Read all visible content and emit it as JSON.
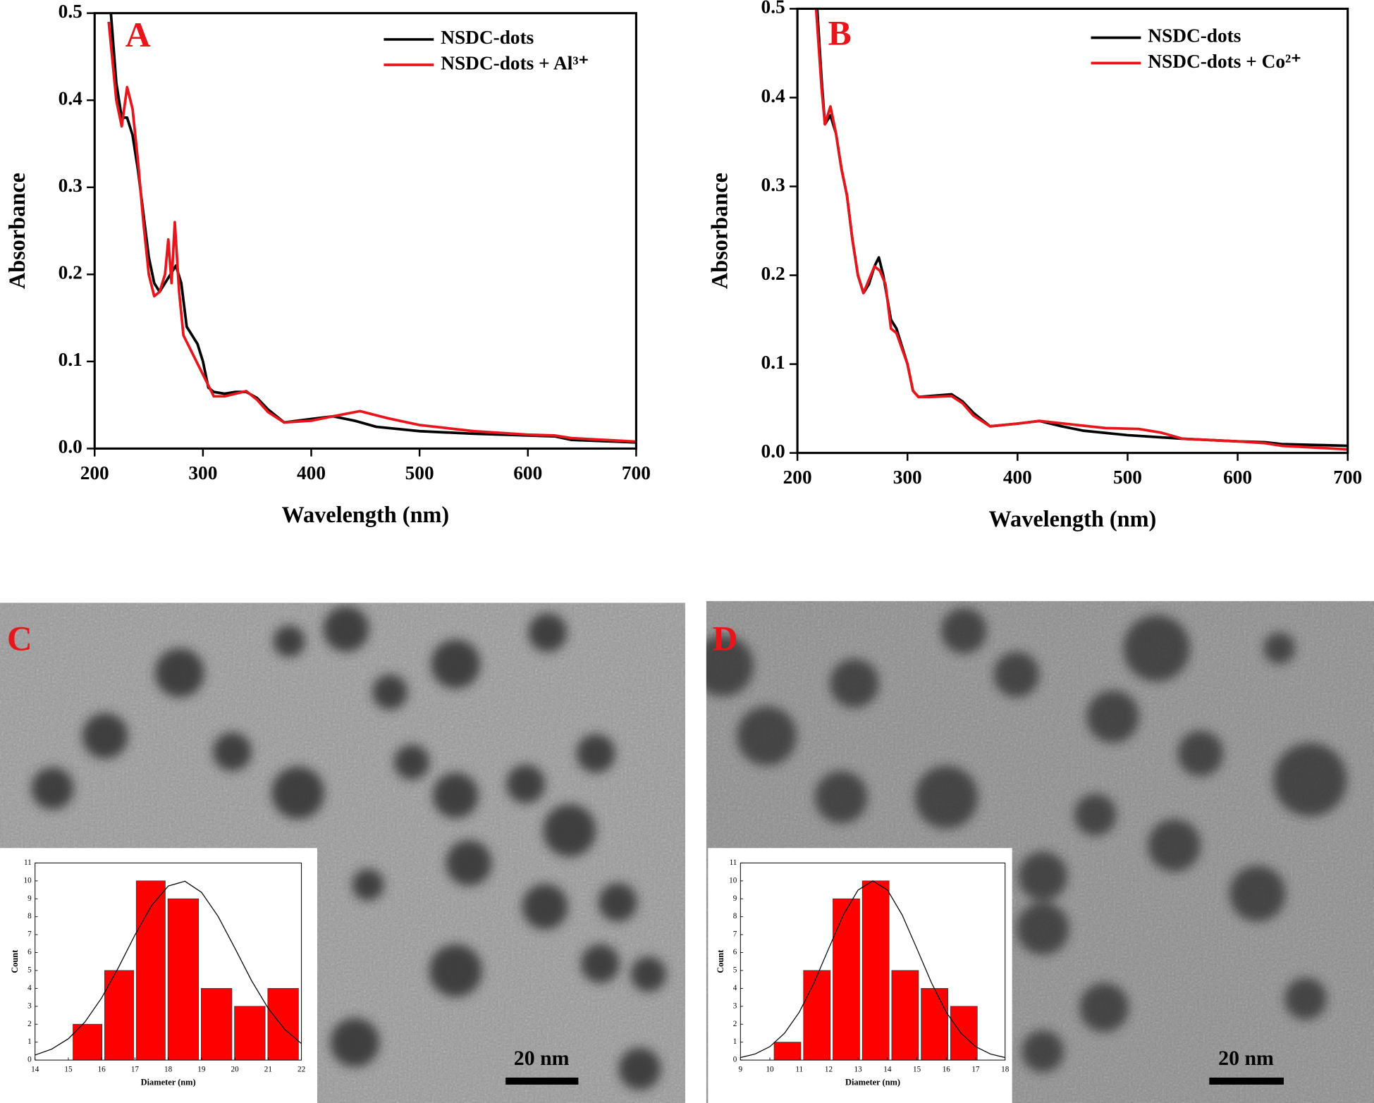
{
  "chart_data": [
    {
      "type": "line",
      "panel_label": "A",
      "xlabel": "Wavelength (nm)",
      "ylabel": "Absorbance",
      "xlim": [
        200,
        700
      ],
      "xticks": [
        200,
        300,
        400,
        500,
        600,
        700
      ],
      "ylim": [
        0,
        0.5
      ],
      "yticks": [
        {
          "value": 0,
          "label": "0.0"
        },
        0.1,
        0.2,
        0.3,
        0.4,
        0.5
      ],
      "legend": "upper right",
      "series": [
        {
          "name": "NSDC-dots",
          "color": "#000000",
          "x": [
            215,
            220,
            225,
            230,
            235,
            240,
            245,
            250,
            255,
            260,
            265,
            270,
            275,
            280,
            285,
            290,
            295,
            300,
            305,
            310,
            320,
            330,
            340,
            350,
            360,
            375,
            400,
            420,
            440,
            460,
            500,
            550,
            600,
            625,
            640,
            700
          ],
          "values": [
            0.5,
            0.42,
            0.38,
            0.38,
            0.36,
            0.32,
            0.27,
            0.22,
            0.19,
            0.18,
            0.19,
            0.2,
            0.21,
            0.19,
            0.14,
            0.13,
            0.12,
            0.1,
            0.07,
            0.065,
            0.063,
            0.065,
            0.065,
            0.058,
            0.045,
            0.03,
            0.034,
            0.037,
            0.032,
            0.025,
            0.02,
            0.017,
            0.015,
            0.014,
            0.01,
            0.007
          ]
        },
        {
          "name": "NSDC-dots + Al³⁺",
          "color": "#e8151b",
          "x": [
            213,
            220,
            225,
            230,
            235,
            240,
            245,
            250,
            255,
            260,
            265,
            268,
            271,
            274,
            278,
            282,
            290,
            300,
            310,
            320,
            340,
            350,
            360,
            375,
            400,
            420,
            445,
            470,
            500,
            550,
            600,
            625,
            640,
            700
          ],
          "values": [
            0.49,
            0.4,
            0.37,
            0.415,
            0.39,
            0.33,
            0.26,
            0.2,
            0.175,
            0.18,
            0.2,
            0.24,
            0.19,
            0.26,
            0.18,
            0.13,
            0.11,
            0.085,
            0.06,
            0.06,
            0.066,
            0.056,
            0.042,
            0.03,
            0.032,
            0.037,
            0.043,
            0.035,
            0.027,
            0.02,
            0.016,
            0.015,
            0.012,
            0.008
          ]
        }
      ]
    },
    {
      "type": "line",
      "panel_label": "B",
      "xlabel": "Wavelength (nm)",
      "ylabel": "Absorbance",
      "xlim": [
        200,
        700
      ],
      "xticks": [
        200,
        300,
        400,
        500,
        600,
        700
      ],
      "ylim": [
        0,
        0.5
      ],
      "yticks": [
        {
          "value": 0,
          "label": "0.0"
        },
        0.1,
        0.2,
        0.3,
        0.4,
        0.5
      ],
      "legend": "upper right",
      "series": [
        {
          "name": "NSDC-dots",
          "color": "#000000",
          "x": [
            218,
            222,
            225,
            230,
            235,
            240,
            245,
            250,
            255,
            260,
            265,
            270,
            274,
            278,
            285,
            290,
            300,
            305,
            310,
            320,
            340,
            350,
            360,
            375,
            400,
            420,
            440,
            460,
            500,
            550,
            600,
            625,
            640,
            700
          ],
          "values": [
            0.5,
            0.42,
            0.37,
            0.38,
            0.36,
            0.32,
            0.29,
            0.24,
            0.2,
            0.18,
            0.19,
            0.21,
            0.22,
            0.2,
            0.15,
            0.14,
            0.1,
            0.07,
            0.063,
            0.064,
            0.066,
            0.058,
            0.045,
            0.03,
            0.033,
            0.036,
            0.03,
            0.025,
            0.02,
            0.016,
            0.013,
            0.012,
            0.01,
            0.008
          ]
        },
        {
          "name": "NSDC-dots + Co²⁺",
          "color": "#e8151b",
          "x": [
            217,
            222,
            225,
            230,
            235,
            240,
            245,
            250,
            255,
            260,
            265,
            270,
            275,
            280,
            285,
            290,
            300,
            305,
            310,
            320,
            340,
            350,
            360,
            375,
            400,
            420,
            450,
            480,
            510,
            530,
            550,
            600,
            625,
            640,
            700
          ],
          "values": [
            0.5,
            0.41,
            0.37,
            0.39,
            0.36,
            0.32,
            0.29,
            0.24,
            0.2,
            0.18,
            0.195,
            0.21,
            0.205,
            0.19,
            0.14,
            0.135,
            0.1,
            0.07,
            0.063,
            0.063,
            0.064,
            0.056,
            0.042,
            0.03,
            0.033,
            0.036,
            0.032,
            0.028,
            0.027,
            0.023,
            0.016,
            0.013,
            0.011,
            0.008,
            0.004
          ]
        }
      ]
    },
    {
      "type": "histogram",
      "panel_label": "C",
      "scale_bar": "20 nm",
      "xlabel": "Diameter (nm)",
      "ylabel": "Count",
      "bins": [
        15.1,
        16.05,
        17.0,
        17.95,
        18.95,
        19.95,
        20.95,
        21.95
      ],
      "values": [
        2,
        5,
        10,
        9,
        4,
        3,
        4
      ],
      "color": "#ff0000",
      "fit": {
        "color": "#000000",
        "x": [
          14,
          14.5,
          15,
          15.5,
          16,
          16.5,
          17,
          17.5,
          18,
          18.5,
          19,
          19.5,
          20,
          20.5,
          21,
          21.5,
          22
        ],
        "values": [
          0.28,
          0.61,
          1.19,
          2.13,
          3.47,
          5.15,
          6.98,
          8.62,
          9.71,
          9.98,
          9.36,
          8.01,
          6.25,
          4.44,
          2.89,
          1.71,
          0.92
        ]
      },
      "xlim": [
        14,
        22
      ],
      "xticks": [
        14,
        15,
        16,
        17,
        18,
        19,
        20,
        21,
        22
      ],
      "ylim": [
        0,
        11
      ],
      "yticks": [
        0,
        1,
        2,
        3,
        4,
        5,
        6,
        7,
        8,
        9,
        10,
        11
      ]
    },
    {
      "type": "histogram",
      "panel_label": "D",
      "scale_bar": "20 nm",
      "xlabel": "Diameter (nm)",
      "ylabel": "Count",
      "bins": [
        10.1,
        11.1,
        12.1,
        13.1,
        14.1,
        15.1,
        16.1,
        17.1
      ],
      "values": [
        1,
        5,
        9,
        10,
        5,
        4,
        3
      ],
      "color": "#ff0000",
      "fit": {
        "color": "#000000",
        "x": [
          9,
          9.5,
          10,
          10.5,
          11,
          11.5,
          12,
          12.5,
          13,
          13.5,
          14,
          14.5,
          15,
          15.5,
          16,
          16.5,
          17,
          17.5,
          18
        ],
        "values": [
          0.14,
          0.34,
          0.75,
          1.5,
          2.67,
          4.3,
          6.22,
          8.1,
          9.49,
          10,
          9.49,
          8.1,
          6.22,
          4.3,
          2.67,
          1.5,
          0.75,
          0.34,
          0.14
        ]
      },
      "xlim": [
        9,
        18
      ],
      "xticks": [
        9,
        10,
        11,
        12,
        13,
        14,
        15,
        16,
        17,
        18
      ],
      "ylim": [
        0,
        11
      ],
      "yticks": [
        0,
        1,
        2,
        3,
        4,
        5,
        6,
        7,
        8,
        9,
        10,
        11
      ]
    }
  ]
}
